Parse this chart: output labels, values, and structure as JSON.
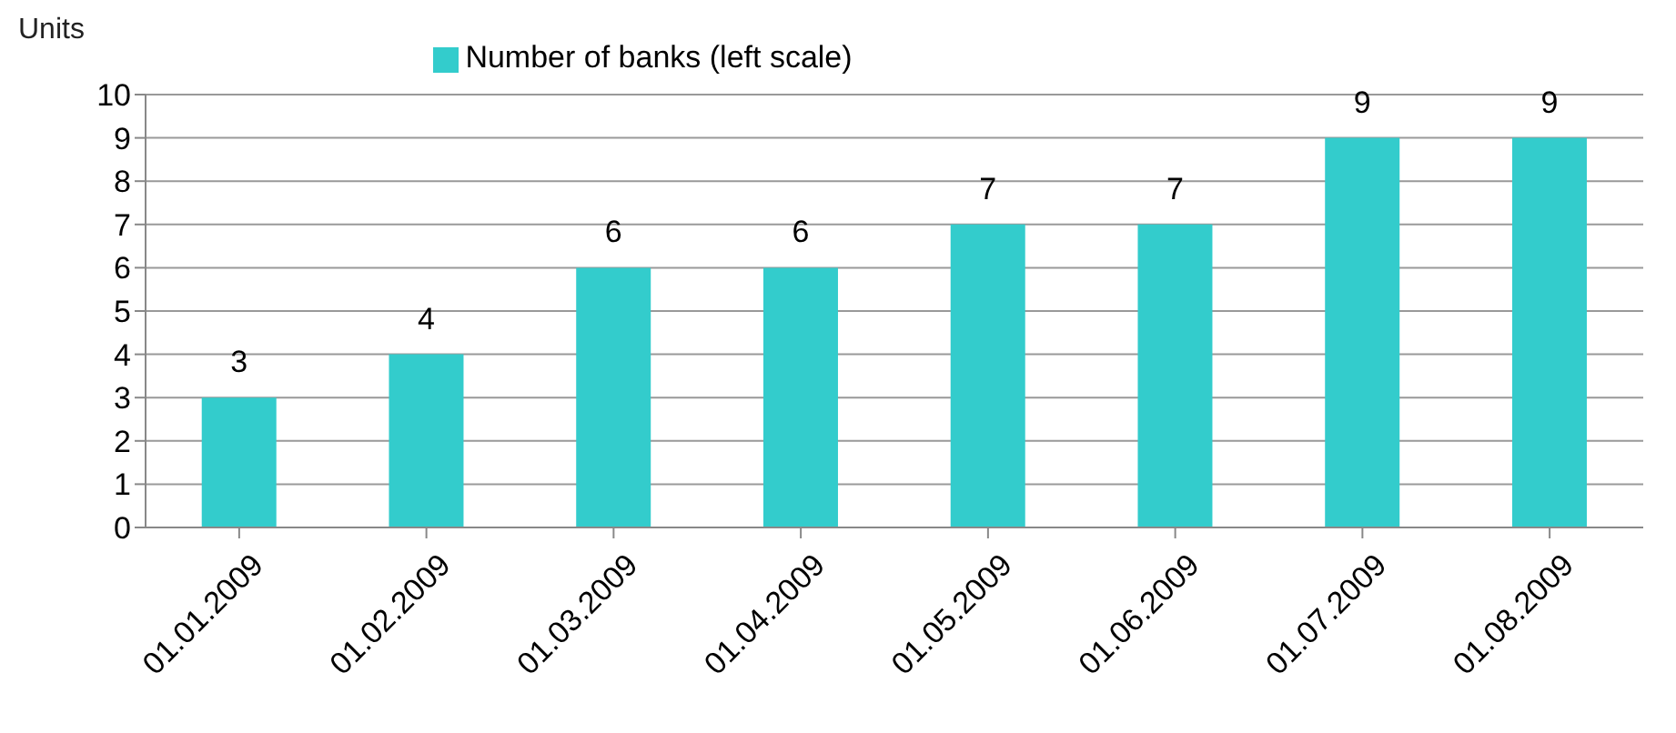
{
  "chart_data": {
    "type": "bar",
    "ylabel": "Units",
    "categories": [
      "01.01.2009",
      "01.02.2009",
      "01.03.2009",
      "01.04.2009",
      "01.05.2009",
      "01.06.2009",
      "01.07.2009",
      "01.08.2009"
    ],
    "series": [
      {
        "name": "Number of banks (left scale)",
        "color": "#33cccc",
        "values": [
          3,
          4,
          6,
          6,
          7,
          7,
          9,
          9
        ]
      }
    ],
    "ylim": [
      0,
      10
    ],
    "yticks": [
      0,
      1,
      2,
      3,
      4,
      5,
      6,
      7,
      8,
      9,
      10
    ],
    "grid": "y",
    "legend": "top",
    "data_labels": true
  }
}
